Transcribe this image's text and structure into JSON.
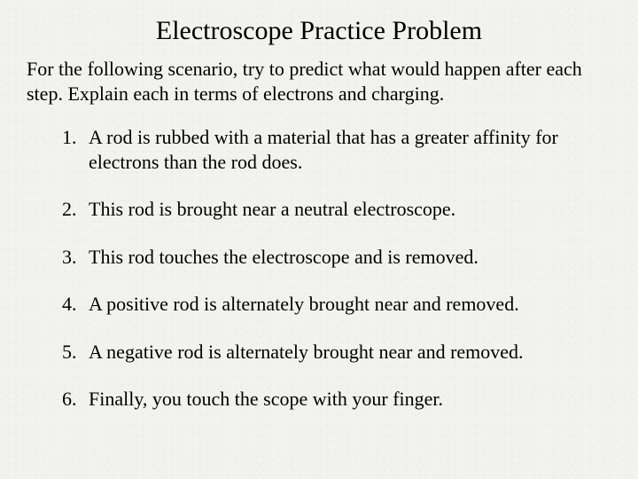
{
  "title": "Electroscope Practice Problem",
  "intro": "For the following scenario, try to predict what would happen after each step. Explain each in terms of electrons and charging.",
  "items": [
    "A rod is rubbed with a material that has a greater affinity for electrons than the rod does.",
    "This rod is brought near a neutral electroscope.",
    "This rod touches the electroscope and is removed.",
    "A positive rod is alternately brought near and removed.",
    "A negative rod is alternately brought near and removed.",
    "Finally, you touch the scope with your finger."
  ],
  "colors": {
    "background": "#f2f2ee",
    "text": "#000000"
  },
  "typography": {
    "family": "Times New Roman",
    "title_fontsize": 30,
    "body_fontsize": 22
  }
}
